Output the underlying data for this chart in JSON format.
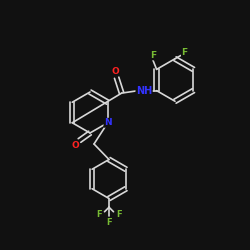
{
  "bg_color": "#111111",
  "bond_color": "#d8d8d8",
  "atom_colors": {
    "N": "#3333ff",
    "O": "#ff2222",
    "F": "#77bb33",
    "C": "#d8d8d8"
  },
  "lw": 1.2,
  "fs": 6.5
}
